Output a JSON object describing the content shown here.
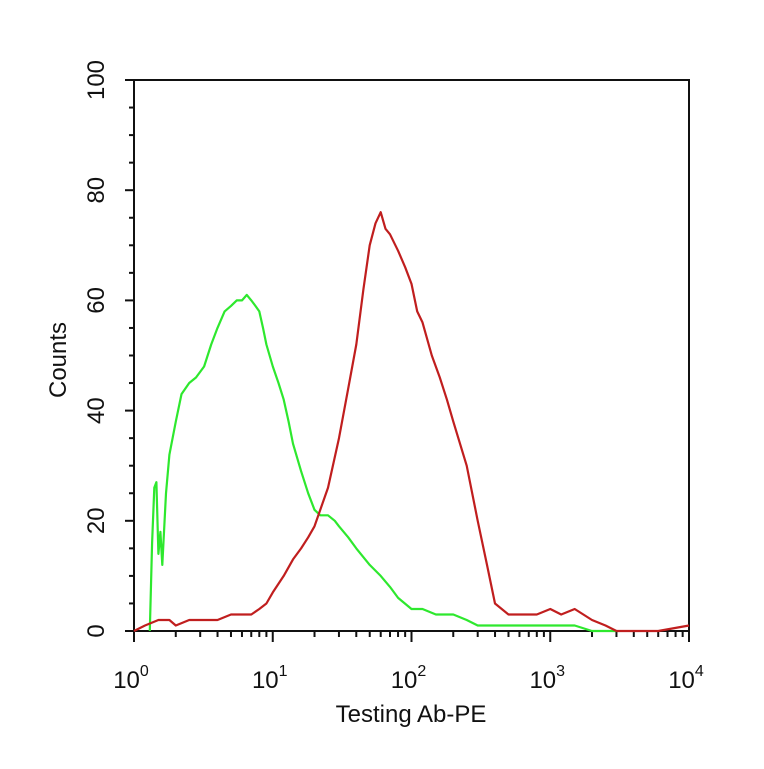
{
  "chart_data": {
    "type": "line",
    "title": "",
    "xlabel": "Testing Ab-PE",
    "ylabel": "Counts",
    "x_scale": "log",
    "xlim": [
      1,
      10000
    ],
    "ylim": [
      0,
      100
    ],
    "x_ticks": [
      {
        "value": 1,
        "base": "10",
        "exp": "0"
      },
      {
        "value": 10,
        "base": "10",
        "exp": "1"
      },
      {
        "value": 100,
        "base": "10",
        "exp": "2"
      },
      {
        "value": 1000,
        "base": "10",
        "exp": "3"
      },
      {
        "value": 10000,
        "base": "10",
        "exp": "4"
      }
    ],
    "y_ticks": [
      "0",
      "20",
      "40",
      "60",
      "80",
      "100"
    ],
    "grid": false,
    "legend": "none",
    "series": [
      {
        "color": "#2ee82e",
        "x": [
          1.3,
          1.35,
          1.4,
          1.45,
          1.5,
          1.55,
          1.6,
          1.7,
          1.8,
          2.0,
          2.2,
          2.5,
          2.8,
          3.2,
          3.6,
          4.0,
          4.5,
          5.0,
          5.5,
          6.0,
          6.5,
          7.0,
          7.5,
          8.0,
          8.5,
          9.0,
          10,
          11,
          12,
          13,
          14,
          16,
          18,
          20,
          22,
          25,
          28,
          30,
          35,
          40,
          50,
          60,
          70,
          80,
          100,
          120,
          150,
          200,
          250,
          300,
          400,
          500,
          700,
          1000,
          1500,
          2000,
          3000
        ],
        "y": [
          0,
          16,
          26,
          27,
          14,
          18,
          12,
          25,
          32,
          38,
          43,
          45,
          46,
          48,
          52,
          55,
          58,
          59,
          60,
          60,
          61,
          60,
          59,
          58,
          55,
          52,
          48,
          45,
          42,
          38,
          34,
          29,
          25,
          22,
          21,
          21,
          20,
          19,
          17,
          15,
          12,
          10,
          8,
          6,
          4,
          4,
          3,
          3,
          2,
          1,
          1,
          1,
          1,
          1,
          1,
          0,
          0
        ]
      },
      {
        "color": "#c01e1e",
        "x": [
          1.0,
          1.2,
          1.5,
          1.8,
          2.0,
          2.5,
          3.0,
          4.0,
          5.0,
          6.0,
          7.0,
          8.0,
          9.0,
          10,
          12,
          14,
          16,
          18,
          20,
          25,
          30,
          35,
          40,
          45,
          50,
          55,
          60,
          65,
          70,
          80,
          90,
          100,
          110,
          120,
          140,
          160,
          180,
          200,
          250,
          300,
          350,
          400,
          500,
          600,
          800,
          1000,
          1200,
          1500,
          2000,
          2500,
          3000,
          4000,
          6000,
          10000
        ],
        "y": [
          0,
          1,
          2,
          2,
          1,
          2,
          2,
          2,
          3,
          3,
          3,
          4,
          5,
          7,
          10,
          13,
          15,
          17,
          19,
          26,
          35,
          44,
          52,
          62,
          70,
          74,
          76,
          73,
          72,
          69,
          66,
          63,
          58,
          56,
          50,
          46,
          42,
          38,
          30,
          20,
          12,
          5,
          3,
          3,
          3,
          4,
          3,
          4,
          2,
          1,
          0,
          0,
          0,
          1
        ]
      }
    ]
  }
}
